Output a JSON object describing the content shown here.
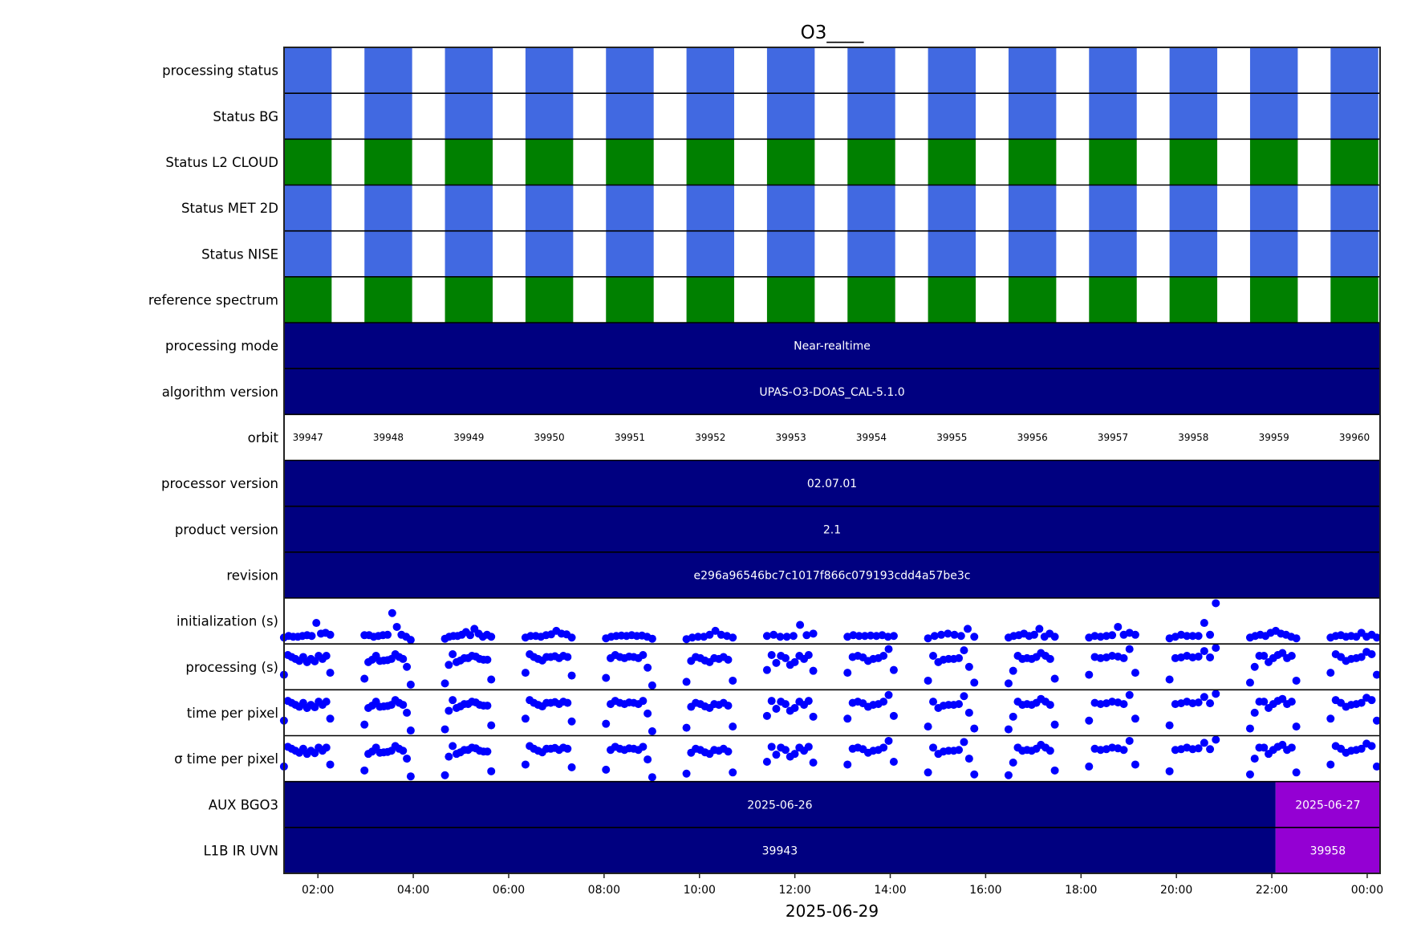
{
  "chart_data": {
    "type": "timeline-status",
    "title": "O3____",
    "xlabel": "2025-06-29",
    "x_range_hours": [
      1.29,
      24.27
    ],
    "x_ticks": [
      {
        "hour": 2,
        "label": "02:00"
      },
      {
        "hour": 4,
        "label": "04:00"
      },
      {
        "hour": 6,
        "label": "06:00"
      },
      {
        "hour": 8,
        "label": "08:00"
      },
      {
        "hour": 10,
        "label": "10:00"
      },
      {
        "hour": 12,
        "label": "12:00"
      },
      {
        "hour": 14,
        "label": "14:00"
      },
      {
        "hour": 16,
        "label": "16:00"
      },
      {
        "hour": 18,
        "label": "18:00"
      },
      {
        "hour": 20,
        "label": "20:00"
      },
      {
        "hour": 22,
        "label": "22:00"
      },
      {
        "hour": 24,
        "label": "00:00"
      }
    ],
    "orbits": {
      "numbers": [
        "39947",
        "39948",
        "39949",
        "39950",
        "39951",
        "39952",
        "39953",
        "39954",
        "39955",
        "39956",
        "39957",
        "39958",
        "39959",
        "39960"
      ],
      "first_start_hour": 1.288,
      "period_hours": 1.688,
      "duration_hours": 1.0
    },
    "colors": {
      "ok_blue": "#4169e1",
      "ok_green": "#008000",
      "navy": "#000080",
      "purple": "#9400d3",
      "dot": "#0000ff"
    },
    "rows": [
      {
        "label": "processing status",
        "kind": "orbit",
        "color": "#4169e1"
      },
      {
        "label": "Status BG",
        "kind": "orbit",
        "color": "#4169e1"
      },
      {
        "label": "Status L2  CLOUD",
        "kind": "orbit",
        "color": "#008000"
      },
      {
        "label": "Status MET 2D",
        "kind": "orbit",
        "color": "#4169e1"
      },
      {
        "label": "Status NISE",
        "kind": "orbit",
        "color": "#4169e1"
      },
      {
        "label": "reference spectrum",
        "kind": "orbit",
        "color": "#008000"
      },
      {
        "label": "processing mode",
        "kind": "bar",
        "segments": [
          {
            "from": 1.29,
            "to": 24.27,
            "color": "#000080",
            "text": "Near-realtime"
          }
        ]
      },
      {
        "label": "algorithm version",
        "kind": "bar",
        "segments": [
          {
            "from": 1.29,
            "to": 24.27,
            "color": "#000080",
            "text": "UPAS-O3-DOAS_CAL-5.1.0"
          }
        ]
      },
      {
        "label": "orbit",
        "kind": "orbit-labels"
      },
      {
        "label": "processor version",
        "kind": "bar",
        "segments": [
          {
            "from": 1.29,
            "to": 24.27,
            "color": "#000080",
            "text": "02.07.01"
          }
        ]
      },
      {
        "label": "product version",
        "kind": "bar",
        "segments": [
          {
            "from": 1.29,
            "to": 24.27,
            "color": "#000080",
            "text": "2.1"
          }
        ]
      },
      {
        "label": "revision",
        "kind": "bar",
        "segments": [
          {
            "from": 1.29,
            "to": 24.27,
            "color": "#000080",
            "text": "e296a96546bc7c1017f866c079193cdd4a57be3c"
          }
        ]
      },
      {
        "label": "initialization (s)",
        "kind": "scatter",
        "profile": "init"
      },
      {
        "label": "processing (s)",
        "kind": "scatter",
        "profile": "proc"
      },
      {
        "label": "time per pixel",
        "kind": "scatter",
        "profile": "proc"
      },
      {
        "label": "σ time per pixel",
        "kind": "scatter",
        "profile": "proc"
      },
      {
        "label": "AUX BGO3",
        "kind": "bar",
        "segments": [
          {
            "from": 1.29,
            "to": 22.08,
            "color": "#000080",
            "text": "2025-06-26"
          },
          {
            "from": 22.08,
            "to": 24.27,
            "color": "#9400d3",
            "text": "2025-06-27"
          }
        ]
      },
      {
        "label": "L1B IR UVN",
        "kind": "bar",
        "segments": [
          {
            "from": 1.29,
            "to": 22.08,
            "color": "#000080",
            "text": "39943"
          },
          {
            "from": 22.08,
            "to": 24.27,
            "color": "#9400d3",
            "text": "39958"
          }
        ]
      }
    ],
    "scatter_profiles": {
      "init": [
        [
          0.08,
          0.12,
          0.1,
          0.1,
          0.12,
          0.14,
          0.12,
          0.45,
          0.18,
          0.2,
          0.15
        ],
        [
          0.14,
          0.14,
          0.1,
          0.12,
          0.14,
          0.15,
          0.7,
          0.35,
          0.15,
          0.1,
          0.02
        ],
        [
          0.05,
          0.1,
          0.12,
          0.12,
          0.15,
          0.22,
          0.14,
          0.3,
          0.18,
          0.1,
          0.15,
          0.1
        ],
        [
          0.08,
          0.12,
          0.12,
          0.1,
          0.14,
          0.16,
          0.25,
          0.18,
          0.16,
          0.08
        ],
        [
          0.06,
          0.1,
          0.12,
          0.13,
          0.12,
          0.14,
          0.12,
          0.13,
          0.1,
          0.05
        ],
        [
          0.04,
          0.08,
          0.1,
          0.1,
          0.15,
          0.25,
          0.15,
          0.12,
          0.08
        ],
        [
          0.12,
          0.15,
          0.1,
          0.1,
          0.12,
          0.4,
          0.14,
          0.18
        ],
        [
          0.1,
          0.14,
          0.12,
          0.12,
          0.13,
          0.12,
          0.14,
          0.1,
          0.12
        ],
        [
          0.06,
          0.12,
          0.15,
          0.18,
          0.15,
          0.12,
          0.3,
          0.1
        ],
        [
          0.08,
          0.12,
          0.14,
          0.18,
          0.12,
          0.15,
          0.3,
          0.1,
          0.18,
          0.1
        ],
        [
          0.08,
          0.12,
          0.1,
          0.12,
          0.14,
          0.35,
          0.15,
          0.2,
          0.15
        ],
        [
          0.06,
          0.1,
          0.15,
          0.12,
          0.12,
          0.12,
          0.45,
          0.15,
          0.95
        ],
        [
          0.08,
          0.12,
          0.15,
          0.12,
          0.2,
          0.25,
          0.18,
          0.15,
          0.1,
          0.06
        ],
        [
          0.08,
          0.12,
          0.14,
          0.1,
          0.12,
          0.1,
          0.2,
          0.1,
          0.15,
          0.08
        ]
      ],
      "proc": [
        [
          0.3,
          0.8,
          0.75,
          0.7,
          0.65,
          0.75,
          0.62,
          0.7,
          0.64,
          0.78,
          0.7,
          0.78,
          0.35
        ],
        [
          0.2,
          0.62,
          0.68,
          0.78,
          0.65,
          0.66,
          0.67,
          0.7,
          0.82,
          0.75,
          0.7,
          0.5,
          0.05
        ],
        [
          0.08,
          0.55,
          0.82,
          0.62,
          0.66,
          0.72,
          0.72,
          0.78,
          0.76,
          0.7,
          0.68,
          0.68,
          0.18
        ],
        [
          0.35,
          0.82,
          0.75,
          0.7,
          0.66,
          0.75,
          0.75,
          0.77,
          0.72,
          0.78,
          0.75,
          0.28
        ],
        [
          0.22,
          0.72,
          0.8,
          0.75,
          0.72,
          0.76,
          0.75,
          0.72,
          0.8,
          0.48,
          0.03
        ],
        [
          0.12,
          0.65,
          0.75,
          0.72,
          0.66,
          0.62,
          0.72,
          0.7,
          0.75,
          0.68,
          0.15
        ],
        [
          0.42,
          0.8,
          0.6,
          0.78,
          0.72,
          0.55,
          0.62,
          0.78,
          0.7,
          0.8,
          0.4
        ],
        [
          0.35,
          0.75,
          0.78,
          0.74,
          0.65,
          0.7,
          0.72,
          0.78,
          0.95,
          0.42
        ],
        [
          0.15,
          0.78,
          0.62,
          0.68,
          0.7,
          0.7,
          0.72,
          0.92,
          0.5,
          0.1
        ],
        [
          0.08,
          0.4,
          0.78,
          0.7,
          0.72,
          0.7,
          0.75,
          0.85,
          0.78,
          0.7,
          0.2
        ],
        [
          0.3,
          0.75,
          0.72,
          0.74,
          0.78,
          0.76,
          0.72,
          0.95,
          0.35
        ],
        [
          0.18,
          0.72,
          0.74,
          0.78,
          0.74,
          0.76,
          0.9,
          0.74,
          0.98
        ],
        [
          0.1,
          0.5,
          0.78,
          0.78,
          0.62,
          0.72,
          0.8,
          0.85,
          0.72,
          0.78,
          0.15
        ],
        [
          0.35,
          0.82,
          0.75,
          0.65,
          0.7,
          0.72,
          0.75,
          0.88,
          0.82,
          0.3
        ]
      ]
    }
  }
}
